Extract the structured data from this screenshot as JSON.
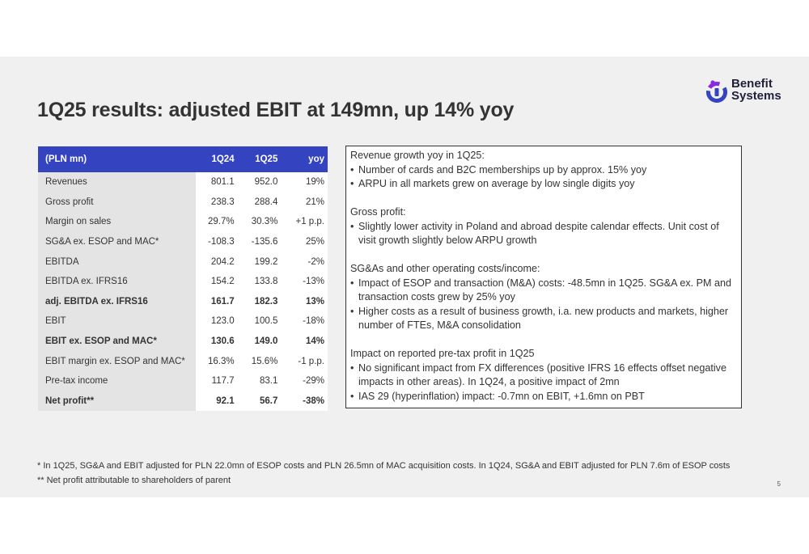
{
  "title": "1Q25 results: adjusted EBIT at 149mn, up 14% yoy",
  "logo": {
    "line1": "Benefit",
    "line2": "Systems",
    "colors": [
      "#3443c0",
      "#8a2be2"
    ]
  },
  "table": {
    "headers": [
      "(PLN mn)",
      "1Q24",
      "1Q25",
      "yoy"
    ],
    "rows": [
      {
        "label": "Revenues",
        "q24": "801.1",
        "q25": "952.0",
        "yoy": "19%",
        "bold": false
      },
      {
        "label": "Gross profit",
        "q24": "238.3",
        "q25": "288.4",
        "yoy": "21%",
        "bold": false
      },
      {
        "label": "Margin on sales",
        "q24": "29.7%",
        "q25": "30.3%",
        "yoy": "+1 p.p.",
        "bold": false
      },
      {
        "label": "SG&A ex. ESOP and MAC*",
        "q24": "-108.3",
        "q25": "-135.6",
        "yoy": "25%",
        "bold": false
      },
      {
        "label": "EBITDA",
        "q24": "204.2",
        "q25": "199.2",
        "yoy": "-2%",
        "bold": false
      },
      {
        "label": "EBITDA ex. IFRS16",
        "q24": "154.2",
        "q25": "133.8",
        "yoy": "-13%",
        "bold": false
      },
      {
        "label": "adj. EBITDA ex. IFRS16",
        "q24": "161.7",
        "q25": "182.3",
        "yoy": "13%",
        "bold": true
      },
      {
        "label": "EBIT",
        "q24": "123.0",
        "q25": "100.5",
        "yoy": "-18%",
        "bold": false
      },
      {
        "label": "EBIT ex. ESOP and MAC*",
        "q24": "130.6",
        "q25": "149.0",
        "yoy": "14%",
        "bold": true
      },
      {
        "label": "EBIT margin ex. ESOP and MAC*",
        "q24": "16.3%",
        "q25": "15.6%",
        "yoy": "-1 p.p.",
        "bold": false
      },
      {
        "label": "Pre-tax income",
        "q24": "117.7",
        "q25": "83.1",
        "yoy": "-29%",
        "bold": false
      },
      {
        "label": "Net profit**",
        "q24": "92.1",
        "q25": "56.7",
        "yoy": "-38%",
        "bold": true
      }
    ]
  },
  "notes": [
    {
      "heading": "Revenue growth yoy in 1Q25:",
      "bullets": [
        "Number of cards and B2C memberships up by approx. 15% yoy",
        "ARPU in all markets grew on average by low single digits yoy"
      ]
    },
    {
      "heading": "Gross profit:",
      "bullets": [
        "Slightly lower activity in Poland and abroad despite calendar effects. Unit cost of visit growth slightly below ARPU growth"
      ]
    },
    {
      "heading": "SG&As and other operating costs/income:",
      "bullets": [
        "Impact of ESOP and transaction (M&A) costs: -48.5mn in 1Q25. SG&A ex. PM and transaction costs grew by 25% yoy",
        "Higher costs as a result of business growth, i.a. new products and markets, higher number of FTEs, M&A consolidation"
      ]
    },
    {
      "heading": "Impact on reported pre-tax profit in 1Q25",
      "bullets": [
        "No significant impact from FX differences (positive IFRS 16 effects offset negative impacts in other areas). In 1Q24, a positive impact of 2mn",
        "IAS 29 (hyperinflation) impact: -0.7mn on EBIT, +1.6mn on PBT"
      ]
    }
  ],
  "footnotes": [
    "* In 1Q25, SG&A and EBIT adjusted for PLN 22.0mn of ESOP costs and PLN 26.5mn of MAC acquisition costs. In 1Q24, SG&A and EBIT adjusted for PLN 7.6m of ESOP costs",
    "** Net profit attributable to shareholders of parent"
  ],
  "page_number": "5"
}
